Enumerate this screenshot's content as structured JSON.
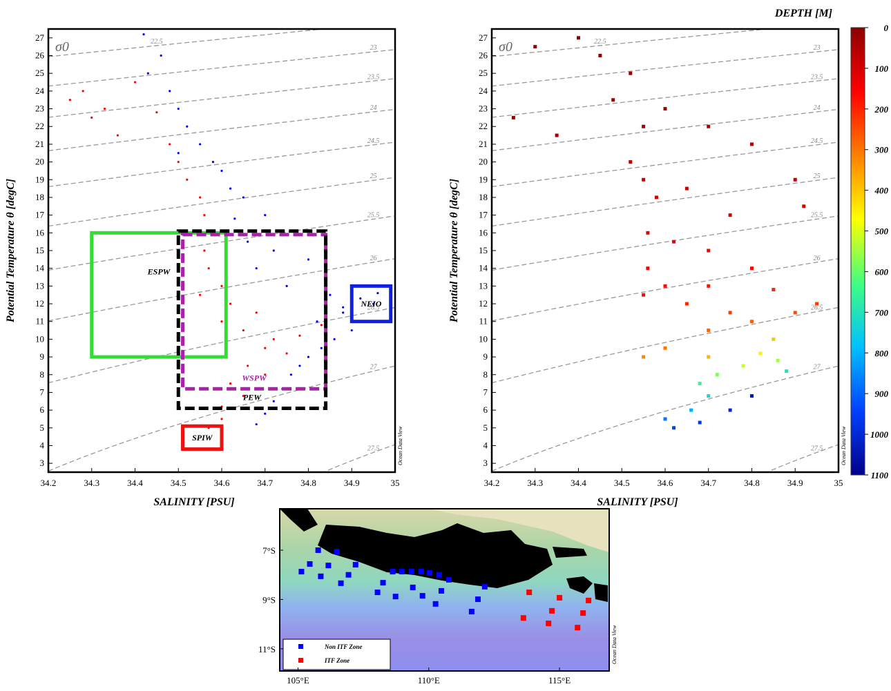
{
  "chart_data": [
    {
      "type": "scatter",
      "x_label": "SALINITY [PSU]",
      "y_label": "Potential Temperature θ [degC]",
      "sigma_label": "σ0",
      "credit": "Ocean Data View",
      "xlim": [
        34.2,
        35
      ],
      "xticks": [
        34.2,
        34.3,
        34.4,
        34.5,
        34.6,
        34.7,
        34.8,
        34.9,
        35
      ],
      "ylim": [
        2.5,
        27.5
      ],
      "yticks": [
        3,
        4,
        5,
        6,
        7,
        8,
        9,
        10,
        11,
        12,
        13,
        14,
        15,
        16,
        17,
        18,
        19,
        20,
        21,
        22,
        23,
        24,
        25,
        26,
        27
      ],
      "isopycnals": [
        22.5,
        23,
        23.5,
        24,
        24.5,
        25,
        25.5,
        26,
        26.5,
        27,
        27.5
      ],
      "series": [
        {
          "color": "#0000ff",
          "x": [
            34.42,
            34.46,
            34.43,
            34.48,
            34.5,
            34.52,
            34.55,
            34.58,
            34.6,
            34.62,
            34.65,
            34.7,
            34.58,
            34.66,
            34.72,
            34.8,
            34.68,
            34.75,
            34.85,
            34.92,
            34.95,
            34.88,
            34.82,
            34.9,
            34.86,
            34.83,
            34.8,
            34.78,
            34.76,
            34.74,
            34.72,
            34.7,
            34.68,
            34.5,
            34.63,
            34.88,
            34.96
          ],
          "values": [
            27.2,
            26,
            25,
            24,
            23,
            22,
            21,
            20,
            19.5,
            18.5,
            18,
            17,
            16,
            15.5,
            15,
            14.5,
            14,
            13,
            12.5,
            12.3,
            12,
            11.5,
            11,
            10.5,
            10,
            9.5,
            9,
            8.5,
            8,
            7.2,
            6.5,
            5.8,
            5.2,
            20.5,
            16.8,
            11.8,
            12.6
          ]
        },
        {
          "color": "#ff0000",
          "x": [
            34.25,
            34.3,
            34.33,
            34.36,
            34.28,
            34.4,
            34.45,
            34.48,
            34.5,
            34.52,
            34.55,
            34.56,
            34.58,
            34.56,
            34.57,
            34.6,
            34.62,
            34.6,
            34.65,
            34.72,
            34.78,
            34.83,
            34.7,
            34.66,
            34.7,
            34.62,
            34.65,
            34.6,
            34.6,
            34.57,
            34.55,
            34.68,
            34.75
          ],
          "values": [
            23.5,
            22.5,
            23,
            21.5,
            24,
            24.5,
            22.8,
            21,
            20,
            19,
            18,
            17,
            16,
            15,
            14,
            13,
            12,
            11,
            10.5,
            10,
            10.2,
            10.8,
            9.5,
            8.5,
            8,
            7.5,
            6.8,
            6.2,
            5.5,
            5,
            12.5,
            11.5,
            9.2
          ]
        }
      ],
      "regions": [
        {
          "name": "ESPW",
          "color": "#33dd33",
          "xlim": [
            34.3,
            34.61
          ],
          "ylim": [
            9,
            16
          ]
        },
        {
          "name": "WSPW",
          "color": "#aa22aa",
          "xlim": [
            34.51,
            34.84
          ],
          "ylim": [
            7.2,
            15.9
          ]
        },
        {
          "name": "PEW",
          "color": "#000000",
          "xlim": [
            34.5,
            34.84
          ],
          "ylim": [
            6.1,
            16.1
          ]
        },
        {
          "name": "NEIO",
          "color": "#1020e0",
          "xlim": [
            34.9,
            34.99
          ],
          "ylim": [
            11,
            13
          ]
        },
        {
          "name": "SPIW",
          "color": "#ee1111",
          "xlim": [
            34.51,
            34.6
          ],
          "ylim": [
            3.8,
            5.1
          ]
        }
      ]
    },
    {
      "type": "scatter-colored",
      "x_label": "SALINITY [PSU]",
      "y_label": "Potential Temperature θ [degC]",
      "sigma_label": "σ0",
      "credit": "Ocean Data View",
      "xlim": [
        34.2,
        35
      ],
      "xticks": [
        34.2,
        34.3,
        34.4,
        34.5,
        34.6,
        34.7,
        34.8,
        34.9,
        35
      ],
      "ylim": [
        2.5,
        27.5
      ],
      "yticks": [
        3,
        4,
        5,
        6,
        7,
        8,
        9,
        10,
        11,
        12,
        13,
        14,
        15,
        16,
        17,
        18,
        19,
        20,
        21,
        22,
        23,
        24,
        25,
        26,
        27
      ],
      "isopycnals": [
        22.5,
        23,
        23.5,
        24,
        24.5,
        25,
        25.5,
        26,
        26.5,
        27,
        27.5
      ],
      "colorbar_title": "DEPTH [M]",
      "clim": [
        0,
        1100
      ],
      "cticks": [
        0,
        100,
        200,
        300,
        400,
        500,
        600,
        700,
        800,
        900,
        1000,
        1100
      ],
      "colormap": [
        "#8b0000",
        "#ff0000",
        "#ff8000",
        "#ffff00",
        "#40ff80",
        "#00c0ff",
        "#0040ff",
        "#00008b"
      ],
      "x": [
        34.3,
        34.4,
        34.45,
        34.52,
        34.25,
        34.35,
        34.48,
        34.55,
        34.6,
        34.7,
        34.8,
        34.9,
        34.52,
        34.55,
        34.58,
        34.65,
        34.75,
        34.92,
        34.56,
        34.62,
        34.7,
        34.8,
        34.56,
        34.6,
        34.7,
        34.85,
        34.95,
        34.9,
        34.55,
        34.65,
        34.75,
        34.8,
        34.7,
        34.6,
        34.55,
        34.7,
        34.85,
        34.82,
        34.78,
        34.72,
        34.86,
        34.68,
        34.7,
        34.66,
        34.6,
        34.62,
        34.68,
        34.75,
        34.8,
        34.88
      ],
      "values": [
        26.5,
        27,
        26,
        25,
        22.5,
        21.5,
        23.5,
        22,
        23,
        22,
        21,
        19,
        20,
        19,
        18,
        18.5,
        17,
        17.5,
        16,
        15.5,
        15,
        14,
        14,
        13,
        13,
        12.8,
        12,
        11.5,
        12.5,
        12,
        11.5,
        11,
        10.5,
        9.5,
        9,
        9,
        10,
        9.2,
        8.5,
        8,
        8.8,
        7.5,
        6.8,
        6,
        5.5,
        5,
        5.3,
        6,
        6.8,
        8.2
      ],
      "depth": [
        5,
        5,
        10,
        20,
        15,
        30,
        25,
        40,
        35,
        50,
        60,
        80,
        60,
        80,
        100,
        90,
        110,
        100,
        130,
        140,
        150,
        160,
        150,
        170,
        180,
        200,
        230,
        250,
        170,
        200,
        230,
        270,
        280,
        300,
        320,
        380,
        400,
        450,
        520,
        580,
        550,
        650,
        720,
        800,
        870,
        940,
        960,
        1000,
        1050,
        700
      ]
    },
    {
      "type": "map",
      "credit": "Ocean Data View",
      "xlim": [
        104.3,
        116.9
      ],
      "ylim": [
        -11.9,
        -5.32
      ],
      "xticks": [
        {
          "value": 105,
          "label": "105°E"
        },
        {
          "value": 110,
          "label": "110°E"
        },
        {
          "value": 115,
          "label": "115°E"
        }
      ],
      "yticks": [
        {
          "value": -7,
          "label": "7°S"
        },
        {
          "value": -9,
          "label": "9°S"
        },
        {
          "value": -11,
          "label": "11°S"
        }
      ],
      "series": [
        {
          "name": "Non ITF Zone",
          "color": "#0000ff",
          "x": [
            105.77,
            106.48,
            105.45,
            106.16,
            107.2,
            105.13,
            105.87,
            106.93,
            106.64,
            108.62,
            108.97,
            109.34,
            109.71,
            110.03,
            110.4,
            110.77,
            108.04,
            108.73,
            108.25,
            109.39,
            109.76,
            110.26,
            110.48,
            111.88,
            111.64,
            112.14
          ],
          "values": [
            -7.0,
            -7.06,
            -7.56,
            -7.62,
            -7.59,
            -7.87,
            -8.06,
            -8.0,
            -8.34,
            -7.87,
            -7.87,
            -7.87,
            -7.87,
            -7.92,
            -8.0,
            -8.2,
            -8.71,
            -8.88,
            -8.32,
            -8.51,
            -8.85,
            -9.18,
            -8.65,
            -8.99,
            -9.49,
            -8.48
          ]
        },
        {
          "name": "ITF Zone",
          "color": "#ff0000",
          "x": [
            113.84,
            115.0,
            116.11,
            113.62,
            114.71,
            115.9,
            114.58,
            115.69
          ],
          "values": [
            -8.71,
            -8.93,
            -9.04,
            -9.75,
            -9.46,
            -9.55,
            -9.97,
            -10.14
          ]
        }
      ]
    }
  ]
}
